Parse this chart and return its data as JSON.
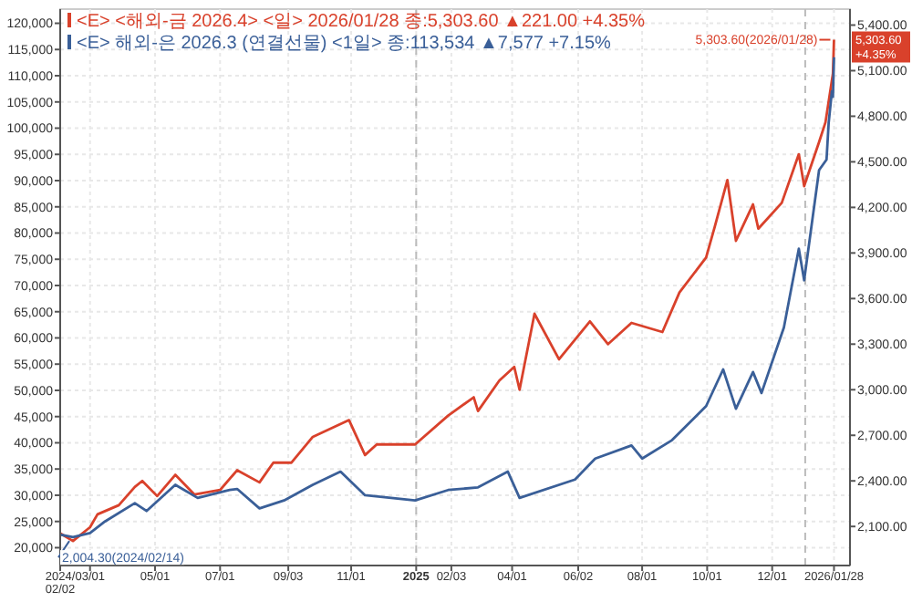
{
  "chart_data": {
    "type": "line",
    "xlim": [
      "2024-02-02",
      "2026-02-12"
    ],
    "xticks": [
      {
        "value": "2024-02-02",
        "label": "2024/02/02"
      },
      {
        "value": "2024-03-01",
        "label": "03/01"
      },
      {
        "value": "2024-05-01",
        "label": "05/01"
      },
      {
        "value": "2024-07-01",
        "label": "07/01"
      },
      {
        "value": "2024-09-03",
        "label": "09/03"
      },
      {
        "value": "2024-11-01",
        "label": "11/01"
      },
      {
        "value": "2025-01-01",
        "label": "2025"
      },
      {
        "value": "2025-02-03",
        "label": "02/03"
      },
      {
        "value": "2025-04-01",
        "label": "04/01"
      },
      {
        "value": "2025-06-02",
        "label": "06/02"
      },
      {
        "value": "2025-08-01",
        "label": "08/01"
      },
      {
        "value": "2025-10-01",
        "label": "10/01"
      },
      {
        "value": "2025-12-01",
        "label": "12/01"
      },
      {
        "value": "2026-01-28",
        "label": "2026/01/28"
      }
    ],
    "ylim": [
      16600,
      122700
    ],
    "yticks": [
      {
        "value": 20000,
        "label": "20,000"
      },
      {
        "value": 25000,
        "label": "25,000"
      },
      {
        "value": 30000,
        "label": "30,000"
      },
      {
        "value": 35000,
        "label": "35,000"
      },
      {
        "value": 40000,
        "label": "40,000"
      },
      {
        "value": 45000,
        "label": "45,000"
      },
      {
        "value": 50000,
        "label": "50,000"
      },
      {
        "value": 55000,
        "label": "55,000"
      },
      {
        "value": 60000,
        "label": "60,000"
      },
      {
        "value": 65000,
        "label": "65,000"
      },
      {
        "value": 70000,
        "label": "70,000"
      },
      {
        "value": 75000,
        "label": "75,000"
      },
      {
        "value": 80000,
        "label": "80,000"
      },
      {
        "value": 85000,
        "label": "85,000"
      },
      {
        "value": 90000,
        "label": "90,000"
      },
      {
        "value": 95000,
        "label": "95,000"
      },
      {
        "value": 100000,
        "label": "100,000"
      },
      {
        "value": 105000,
        "label": "105,000"
      },
      {
        "value": 110000,
        "label": "110,000"
      },
      {
        "value": 115000,
        "label": "115,000"
      },
      {
        "value": 120000,
        "label": "120,000"
      }
    ],
    "y2lim": [
      1843,
      5505
    ],
    "y2ticks": [
      {
        "value": 2100,
        "label": "2,100.00"
      },
      {
        "value": 2400,
        "label": "2,400.00"
      },
      {
        "value": 2700,
        "label": "2,700.00"
      },
      {
        "value": 3000,
        "label": "3,000.00"
      },
      {
        "value": 3300,
        "label": "3,300.00"
      },
      {
        "value": 3600,
        "label": "3,600.00"
      },
      {
        "value": 3900,
        "label": "3,900.00"
      },
      {
        "value": 4200,
        "label": "4,200.00"
      },
      {
        "value": 4500,
        "label": "4,500.00"
      },
      {
        "value": 4800,
        "label": "4,800.00"
      },
      {
        "value": 5100,
        "label": "5,100.00"
      },
      {
        "value": 5400,
        "label": "5,400.00"
      }
    ],
    "grid": true,
    "legend": "top left",
    "line_style": "solid",
    "marker": "none",
    "ref_lines": [
      {
        "axis": "x",
        "value": "2025-01-01",
        "line_style": "dashed",
        "color": "#bbbbbb"
      },
      {
        "axis": "x",
        "value": "2026-01-01",
        "line_style": "dashed",
        "color": "#bbbbbb"
      }
    ],
    "series": [
      {
        "name": "<E> <해외-금 2026.4> <일> 2026/01/28 종:5,303.60 ▲221.00 +4.35%",
        "color": "#d9412b",
        "axis": "y2",
        "x": [
          "2024-02-02",
          "2024-02-14",
          "2024-03-01",
          "2024-03-08",
          "2024-03-28",
          "2024-04-12",
          "2024-04-19",
          "2024-05-03",
          "2024-05-20",
          "2024-06-07",
          "2024-07-01",
          "2024-07-17",
          "2024-08-07",
          "2024-08-20",
          "2024-09-06",
          "2024-09-26",
          "2024-10-30",
          "2024-11-14",
          "2024-11-25",
          "2024-12-31",
          "2025-01-31",
          "2025-02-24",
          "2025-02-28",
          "2025-03-20",
          "2025-04-03",
          "2025-04-08",
          "2025-04-22",
          "2025-05-15",
          "2025-06-13",
          "2025-06-30",
          "2025-07-22",
          "2025-08-20",
          "2025-09-05",
          "2025-09-30",
          "2025-10-08",
          "2025-10-20",
          "2025-10-28",
          "2025-11-13",
          "2025-11-18",
          "2025-12-10",
          "2025-12-26",
          "2025-12-31",
          "2026-01-14",
          "2026-01-20",
          "2026-01-27",
          "2026-01-28"
        ],
        "values": [
          2055,
          2004.3,
          2095,
          2180,
          2240,
          2360,
          2400,
          2300,
          2440,
          2310,
          2340,
          2470,
          2390,
          2520,
          2520,
          2690,
          2800,
          2570,
          2640,
          2640,
          2830,
          2950,
          2860,
          3060,
          3150,
          3000,
          3500,
          3200,
          3450,
          3300,
          3440,
          3380,
          3640,
          3870,
          4070,
          4380,
          3980,
          4220,
          4060,
          4230,
          4550,
          4340,
          4630,
          4760,
          5080,
          5303.6
        ]
      },
      {
        "name": "<E> 해외-은 2026.3 (연결선물) <1일> 종:113,534 ▲7,577 +7.15%",
        "color": "#3a5f98",
        "x": [
          "2024-02-02",
          "2024-02-14",
          "2024-03-01",
          "2024-03-15",
          "2024-04-12",
          "2024-04-23",
          "2024-05-20",
          "2024-06-10",
          "2024-07-10",
          "2024-07-17",
          "2024-08-07",
          "2024-08-30",
          "2024-09-26",
          "2024-10-22",
          "2024-11-14",
          "2024-12-31",
          "2025-01-31",
          "2025-02-28",
          "2025-03-28",
          "2025-04-08",
          "2025-05-30",
          "2025-06-18",
          "2025-07-22",
          "2025-08-01",
          "2025-08-29",
          "2025-09-30",
          "2025-10-16",
          "2025-10-28",
          "2025-11-13",
          "2025-11-21",
          "2025-12-12",
          "2025-12-26",
          "2025-12-31",
          "2026-01-14",
          "2026-01-21",
          "2026-01-23",
          "2026-01-26",
          "2026-01-27",
          "2026-01-28"
        ],
        "values": [
          22500,
          22000,
          22800,
          25000,
          28500,
          27000,
          32000,
          29500,
          31000,
          31200,
          27500,
          29000,
          32000,
          34500,
          30000,
          29000,
          31000,
          31500,
          34500,
          29500,
          33000,
          37000,
          39500,
          37000,
          40500,
          47000,
          54000,
          46500,
          53500,
          49500,
          62000,
          77000,
          71000,
          92000,
          94000,
          101000,
          107000,
          106000,
          113534
        ]
      }
    ],
    "annotations": [
      "5,303.60(2026/01/28)",
      "2,004.30(2024/02/14)",
      "5,303.60",
      "+4.35%"
    ]
  }
}
